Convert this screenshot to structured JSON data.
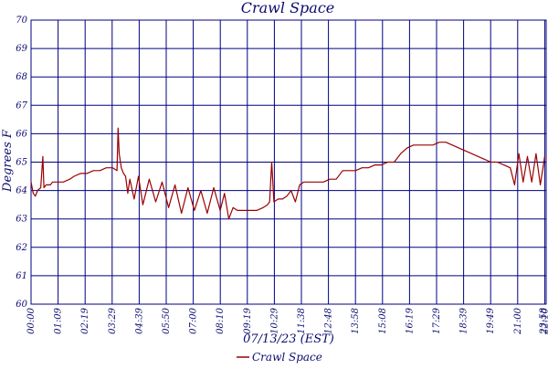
{
  "chart_data": {
    "type": "line",
    "title": "Crawl Space",
    "xlabel": "07/13/23 (EST)",
    "ylabel": "Degrees F",
    "ylim": [
      60,
      70
    ],
    "yticks": [
      "60",
      "61",
      "62",
      "63",
      "64",
      "65",
      "66",
      "67",
      "68",
      "69",
      "70"
    ],
    "xticks": [
      "00:00",
      "01:09",
      "02:19",
      "03:29",
      "04:39",
      "05:50",
      "07:00",
      "08:10",
      "09:19",
      "10:29",
      "11:38",
      "12:48",
      "13:58",
      "15:08",
      "16:19",
      "17:29",
      "18:39",
      "19:49",
      "21:00",
      "22:10",
      "23:20",
      "23:58"
    ],
    "xlim_hours": [
      0,
      23.97
    ],
    "grid": true,
    "legend_position": "bottom-center",
    "series": [
      {
        "name": "Crawl Space",
        "color": "#9b0000",
        "x": [
          0.0,
          0.1,
          0.2,
          0.3,
          0.45,
          0.55,
          0.6,
          0.7,
          0.8,
          0.9,
          1.0,
          1.2,
          1.5,
          1.8,
          2.0,
          2.3,
          2.6,
          2.9,
          3.2,
          3.5,
          3.8,
          4.0,
          4.05,
          4.1,
          4.2,
          4.3,
          4.4,
          4.5,
          4.6,
          4.8,
          5.0,
          5.2,
          5.5,
          5.8,
          6.1,
          6.4,
          6.7,
          7.0,
          7.3,
          7.6,
          7.9,
          8.2,
          8.5,
          8.8,
          9.0,
          9.2,
          9.4,
          9.6,
          9.9,
          10.2,
          10.5,
          10.8,
          11.0,
          11.1,
          11.2,
          11.3,
          11.5,
          11.7,
          11.9,
          12.1,
          12.3,
          12.5,
          12.7,
          12.9,
          13.1,
          13.3,
          13.6,
          13.9,
          14.2,
          14.5,
          14.8,
          15.1,
          15.4,
          15.7,
          16.0,
          16.3,
          16.6,
          16.9,
          17.2,
          17.5,
          17.8,
          18.1,
          18.4,
          18.7,
          19.0,
          19.3,
          19.6,
          19.9,
          20.2,
          20.5,
          20.8,
          21.1,
          21.4,
          21.7,
          22.0,
          22.3,
          22.5,
          22.7,
          22.9,
          23.1,
          23.3,
          23.5,
          23.7,
          23.9
        ],
        "y": [
          64.3,
          63.9,
          63.8,
          64.0,
          64.1,
          65.2,
          64.1,
          64.2,
          64.2,
          64.2,
          64.3,
          64.3,
          64.3,
          64.4,
          64.5,
          64.6,
          64.6,
          64.7,
          64.7,
          64.8,
          64.8,
          64.7,
          66.2,
          65.3,
          64.8,
          64.6,
          64.5,
          63.9,
          64.4,
          63.7,
          64.5,
          63.5,
          64.4,
          63.6,
          64.3,
          63.4,
          64.2,
          63.2,
          64.1,
          63.3,
          64.0,
          63.2,
          64.1,
          63.3,
          63.9,
          63.0,
          63.4,
          63.3,
          63.3,
          63.3,
          63.3,
          63.4,
          63.5,
          63.6,
          65.0,
          63.6,
          63.7,
          63.7,
          63.8,
          64.0,
          63.6,
          64.2,
          64.3,
          64.3,
          64.3,
          64.3,
          64.3,
          64.4,
          64.4,
          64.7,
          64.7,
          64.7,
          64.8,
          64.8,
          64.9,
          64.9,
          65.0,
          65.0,
          65.3,
          65.5,
          65.6,
          65.6,
          65.6,
          65.6,
          65.7,
          65.7,
          65.6,
          65.5,
          65.4,
          65.3,
          65.2,
          65.1,
          65.0,
          65.0,
          64.9,
          64.8,
          64.2,
          65.3,
          64.3,
          65.2,
          64.3,
          65.3,
          64.2,
          65.2
        ]
      }
    ]
  }
}
